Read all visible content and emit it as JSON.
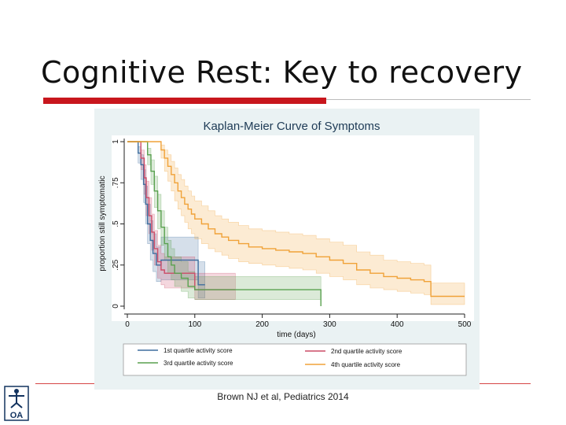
{
  "slide": {
    "title": "Cognitive Rest: Key to recovery",
    "citation": "Brown NJ et al, Pediatrics 2014",
    "logo_text": "OA"
  },
  "colors": {
    "title_rule": "#c8161d",
    "panel_bg": "#eaf2f3",
    "q1": "#3f6e9e",
    "q2": "#cc4b67",
    "q3": "#59a14f",
    "q4": "#f0a238"
  },
  "chart_data": {
    "type": "line",
    "title": "Kaplan-Meier Curve of Symptoms",
    "xlabel": "time (days)",
    "ylabel": "proportion still symptomatic",
    "xlim": [
      0,
      500
    ],
    "ylim": [
      0,
      1
    ],
    "xticks": [
      0,
      100,
      200,
      300,
      400,
      500
    ],
    "yticks": [
      0,
      0.25,
      0.5,
      0.75,
      1
    ],
    "ytick_labels": [
      "0",
      ".25",
      ".5",
      ".75",
      "1"
    ],
    "legend_position": "bottom",
    "series": [
      {
        "name": "1st quartile activity score",
        "color": "#3f6e9e",
        "x": [
          0,
          12,
          16,
          20,
          24,
          27,
          30,
          34,
          38,
          43,
          50,
          60,
          80,
          100,
          105,
          115
        ],
        "y": [
          1.0,
          1.0,
          0.93,
          0.86,
          0.74,
          0.62,
          0.5,
          0.4,
          0.32,
          0.25,
          0.28,
          0.28,
          0.28,
          0.28,
          0.13,
          0.13
        ],
        "lower": [
          1.0,
          1.0,
          0.87,
          0.77,
          0.63,
          0.5,
          0.38,
          0.28,
          0.21,
          0.15,
          0.16,
          0.16,
          0.16,
          0.16,
          0.05,
          0.05
        ],
        "upper": [
          1.0,
          1.0,
          0.97,
          0.92,
          0.83,
          0.73,
          0.62,
          0.52,
          0.44,
          0.36,
          0.42,
          0.42,
          0.42,
          0.42,
          0.27,
          0.27
        ]
      },
      {
        "name": "2nd quartile activity score",
        "color": "#cc4b67",
        "x": [
          0,
          15,
          20,
          25,
          28,
          32,
          36,
          40,
          45,
          50,
          55,
          65,
          80,
          100,
          160
        ],
        "y": [
          1.0,
          1.0,
          0.9,
          0.78,
          0.66,
          0.55,
          0.45,
          0.35,
          0.27,
          0.22,
          0.2,
          0.2,
          0.2,
          0.1,
          0.1
        ],
        "lower": [
          1.0,
          1.0,
          0.83,
          0.68,
          0.55,
          0.44,
          0.34,
          0.25,
          0.17,
          0.13,
          0.11,
          0.11,
          0.11,
          0.04,
          0.04
        ],
        "upper": [
          1.0,
          1.0,
          0.95,
          0.86,
          0.76,
          0.66,
          0.56,
          0.46,
          0.37,
          0.32,
          0.3,
          0.3,
          0.3,
          0.2,
          0.2
        ]
      },
      {
        "name": "3rd quartile activity score",
        "color": "#59a14f",
        "x": [
          0,
          25,
          30,
          35,
          40,
          45,
          50,
          55,
          60,
          65,
          70,
          80,
          90,
          100,
          150,
          200,
          285,
          287
        ],
        "y": [
          1.0,
          1.0,
          0.92,
          0.82,
          0.7,
          0.58,
          0.48,
          0.38,
          0.3,
          0.25,
          0.2,
          0.17,
          0.12,
          0.1,
          0.1,
          0.1,
          0.1,
          0.0
        ],
        "lower": [
          1.0,
          1.0,
          0.86,
          0.74,
          0.6,
          0.47,
          0.37,
          0.28,
          0.2,
          0.16,
          0.12,
          0.09,
          0.05,
          0.04,
          0.04,
          0.04,
          0.04,
          0.0
        ],
        "upper": [
          1.0,
          1.0,
          0.96,
          0.89,
          0.79,
          0.68,
          0.58,
          0.48,
          0.4,
          0.35,
          0.3,
          0.27,
          0.21,
          0.18,
          0.18,
          0.18,
          0.18,
          0.0
        ]
      },
      {
        "name": "4th quartile activity score",
        "color": "#f0a238",
        "x": [
          0,
          45,
          50,
          55,
          60,
          65,
          70,
          75,
          80,
          85,
          90,
          95,
          100,
          110,
          120,
          130,
          140,
          150,
          165,
          180,
          200,
          220,
          240,
          260,
          280,
          300,
          320,
          340,
          360,
          380,
          400,
          420,
          440,
          450,
          500
        ],
        "y": [
          1.0,
          1.0,
          0.95,
          0.9,
          0.85,
          0.8,
          0.75,
          0.7,
          0.66,
          0.62,
          0.59,
          0.56,
          0.53,
          0.5,
          0.47,
          0.44,
          0.42,
          0.4,
          0.38,
          0.36,
          0.35,
          0.34,
          0.33,
          0.32,
          0.3,
          0.28,
          0.26,
          0.22,
          0.2,
          0.18,
          0.17,
          0.16,
          0.15,
          0.06,
          0.06
        ],
        "lower": [
          1.0,
          1.0,
          0.9,
          0.82,
          0.76,
          0.7,
          0.64,
          0.59,
          0.55,
          0.51,
          0.47,
          0.44,
          0.41,
          0.38,
          0.35,
          0.33,
          0.31,
          0.29,
          0.27,
          0.26,
          0.25,
          0.24,
          0.23,
          0.22,
          0.2,
          0.18,
          0.16,
          0.13,
          0.11,
          0.1,
          0.09,
          0.08,
          0.07,
          0.01,
          0.01
        ],
        "upper": [
          1.0,
          1.0,
          0.98,
          0.95,
          0.92,
          0.88,
          0.84,
          0.8,
          0.77,
          0.73,
          0.7,
          0.67,
          0.64,
          0.61,
          0.58,
          0.55,
          0.53,
          0.51,
          0.49,
          0.47,
          0.46,
          0.45,
          0.44,
          0.43,
          0.41,
          0.39,
          0.37,
          0.33,
          0.31,
          0.28,
          0.27,
          0.26,
          0.25,
          0.14,
          0.14
        ]
      }
    ]
  }
}
